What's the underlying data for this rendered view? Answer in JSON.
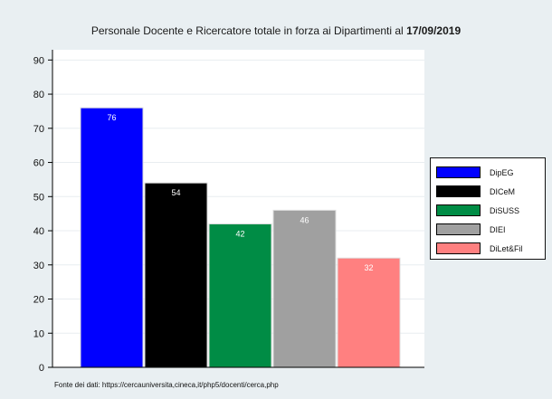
{
  "chart_data": {
    "type": "bar",
    "title_main": "Personale Docente e Ricercatore totale in forza ai Dipartimenti al",
    "title_date": "17/09/2019",
    "categories": [
      "DipEG",
      "DICeM",
      "DiSUSS",
      "DIEI",
      "DiLet&Fil"
    ],
    "values": [
      76,
      54,
      42,
      46,
      32
    ],
    "colors": [
      "#0000ff",
      "#000000",
      "#008c45",
      "#a0a0a0",
      "#ff8080"
    ],
    "ylim": [
      0,
      93
    ],
    "yticks": [
      0,
      10,
      20,
      30,
      40,
      50,
      60,
      70,
      80,
      90
    ],
    "grid": true,
    "legend_position": "right",
    "source_note": "Fonte dei dati: https://cercauniversita,cineca,it/php5/docenti/cerca,php"
  }
}
